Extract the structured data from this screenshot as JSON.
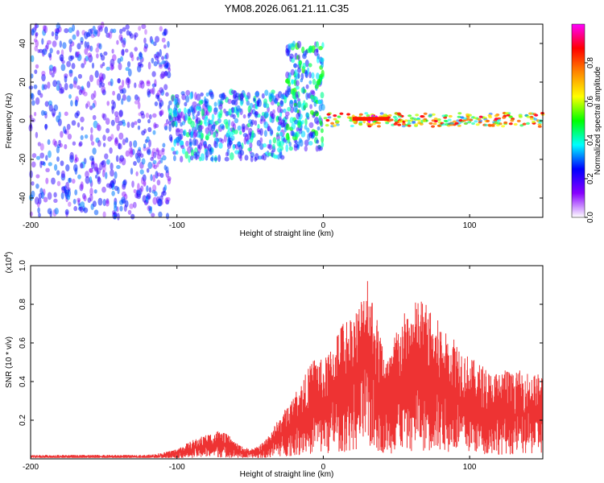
{
  "figure": {
    "title": "YM08.2026.061.21.11.C35"
  },
  "chart_data": [
    {
      "type": "heatmap",
      "xlabel": "Height of straight line (km)",
      "ylabel": "Frequency (Hz)",
      "xlim": [
        -200,
        150
      ],
      "ylim": [
        -50,
        50
      ],
      "xticks": [
        -200,
        -100,
        0,
        100
      ],
      "yticks": [
        -40,
        -20,
        0,
        20,
        40
      ],
      "colorbar": {
        "label": "Normalized spectral amplitude",
        "range": [
          0.0,
          1.0
        ],
        "ticks": [
          "0.0",
          "0.2",
          "0.4",
          "0.6",
          "0.8"
        ],
        "colors": [
          "#ffffff",
          "#8800ff",
          "#0000ff",
          "#00ffff",
          "#00ff00",
          "#ffff00",
          "#ff8800",
          "#ff0000",
          "#ff00ff"
        ]
      },
      "regions": [
        {
          "x_range": [
            -200,
            -105
          ],
          "freq_range": [
            -50,
            50
          ],
          "level": 0.25,
          "character": "broadband scattered"
        },
        {
          "x_range": [
            -105,
            -25
          ],
          "freq_range": [
            -20,
            15
          ],
          "level": 0.35,
          "character": "mid-band noise"
        },
        {
          "x_range": [
            -25,
            0
          ],
          "freq_range": [
            -15,
            40
          ],
          "level": 0.4,
          "character": "rising spike"
        },
        {
          "x_range": [
            0,
            150
          ],
          "freq_range": [
            -3,
            4
          ],
          "level": 0.7,
          "character": "narrow band near 0 Hz"
        },
        {
          "x_range": [
            20,
            45
          ],
          "freq_range": [
            0,
            2
          ],
          "level": 1.0,
          "character": "peak line"
        }
      ]
    },
    {
      "type": "line",
      "xlabel": "Height of straight line (km)",
      "ylabel": "SNR (10 * v/v)",
      "scale_label": "(x10",
      "scale_exponent": "4",
      "scale_suffix": ")",
      "xlim": [
        -200,
        150
      ],
      "ylim": [
        0,
        1.0
      ],
      "xticks": [
        -200,
        -100,
        0,
        100
      ],
      "yticks": [
        0.2,
        0.4,
        0.6,
        0.8,
        1.0
      ],
      "color": "#ee3333",
      "x": [
        -200,
        -180,
        -160,
        -140,
        -120,
        -110,
        -100,
        -90,
        -80,
        -72,
        -65,
        -60,
        -55,
        -50,
        -45,
        -40,
        -35,
        -30,
        -25,
        -20,
        -15,
        -10,
        -5,
        0,
        5,
        10,
        15,
        20,
        25,
        30,
        35,
        40,
        45,
        50,
        55,
        60,
        65,
        70,
        75,
        80,
        85,
        90,
        95,
        100,
        105,
        110,
        115,
        120,
        125,
        130,
        135,
        140,
        145,
        150
      ],
      "y": [
        0.02,
        0.02,
        0.02,
        0.02,
        0.02,
        0.03,
        0.05,
        0.09,
        0.12,
        0.14,
        0.12,
        0.08,
        0.06,
        0.05,
        0.06,
        0.09,
        0.15,
        0.2,
        0.26,
        0.32,
        0.38,
        0.45,
        0.52,
        0.48,
        0.55,
        0.65,
        0.7,
        0.72,
        0.78,
        0.95,
        0.75,
        0.6,
        0.5,
        0.65,
        0.72,
        0.75,
        0.8,
        0.78,
        0.7,
        0.68,
        0.6,
        0.62,
        0.55,
        0.5,
        0.48,
        0.46,
        0.42,
        0.44,
        0.45,
        0.42,
        0.44,
        0.43,
        0.42,
        0.42
      ]
    }
  ]
}
